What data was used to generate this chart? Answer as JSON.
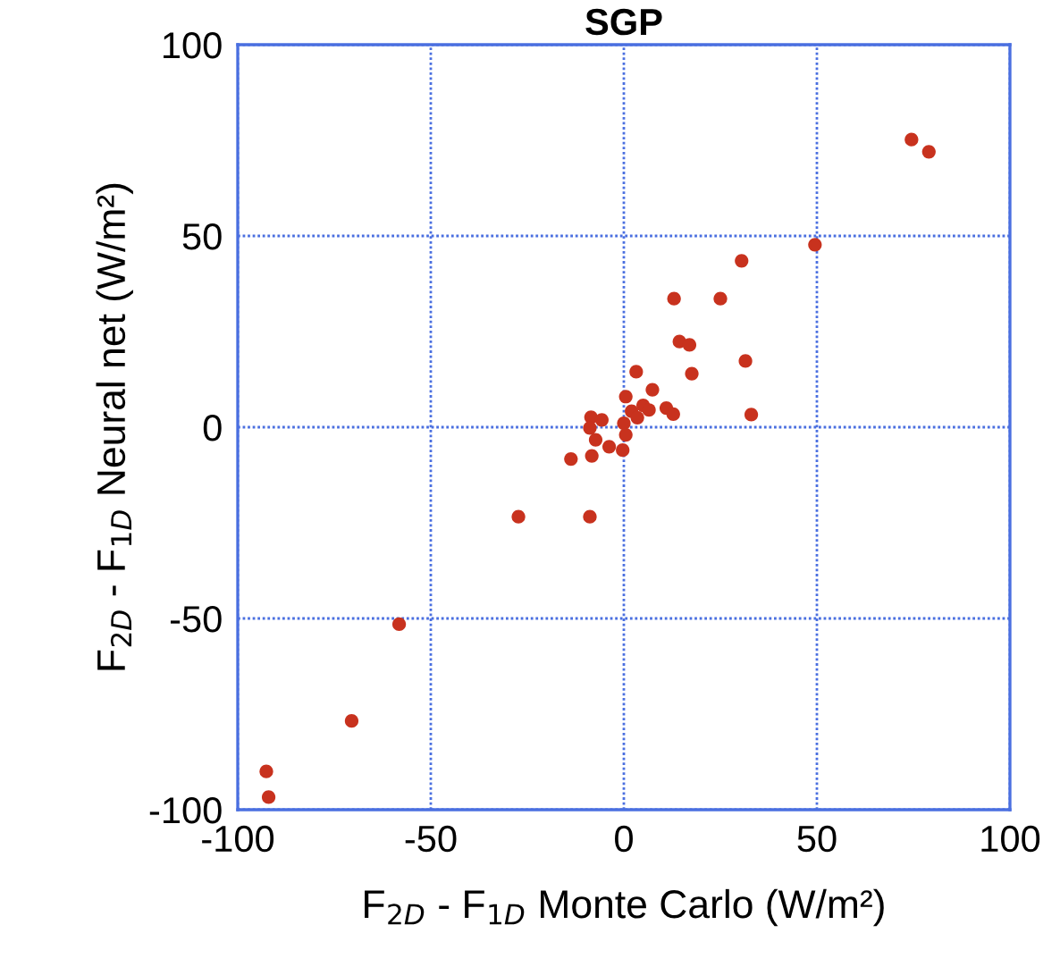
{
  "chart_data": {
    "type": "scatter",
    "title": "SGP",
    "xlabel": "F$_{2D}$ - F$_{1D}$ Monte Carlo (W/m²)",
    "ylabel": "F$_{2D}$ - F$_{1D}$ Neural net (W/m²)",
    "x": [
      74.5,
      79,
      49.5,
      30.5,
      13,
      25,
      14.4,
      17,
      17.6,
      31.5,
      33,
      3.2,
      11,
      7.4,
      0.5,
      5,
      12.8,
      -8.5,
      -5.7,
      -8.8,
      -7.3,
      -3.8,
      -0.3,
      -13.7,
      -8.3,
      0.5,
      2,
      0,
      3.5,
      6.5,
      -58.2,
      -70.5,
      -92.6,
      -92,
      -27.3,
      -8.8
    ],
    "values": [
      75.2,
      72,
      47.7,
      43.5,
      33.6,
      33.6,
      22.4,
      21.5,
      14,
      17.3,
      3.3,
      14.5,
      5,
      9.8,
      8,
      5.7,
      3.4,
      2.6,
      1.9,
      -0.2,
      -3.3,
      -5.1,
      -6,
      -8.3,
      -7.5,
      -2,
      4.2,
      1,
      2.5,
      4.5,
      -51.5,
      -76.8,
      -90,
      -96.7,
      -23.4,
      -23.4
    ],
    "color": "#c8321e",
    "marker": "circle",
    "xlim": [
      -100,
      100
    ],
    "ylim": [
      -100,
      100
    ],
    "xticks": [
      -100,
      -50,
      0,
      50,
      100
    ],
    "yticks": [
      -100,
      -50,
      0,
      50,
      100
    ],
    "grid": true
  }
}
